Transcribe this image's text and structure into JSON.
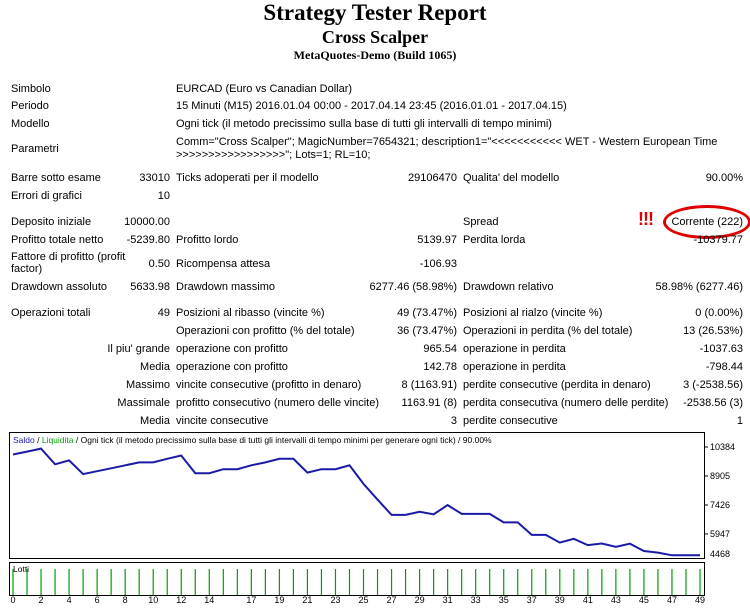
{
  "header": {
    "title": "Strategy Tester Report",
    "subtitle": "Cross Scalper",
    "build": "MetaQuotes-Demo (Build 1065)"
  },
  "info": {
    "simbolo_label": "Simbolo",
    "simbolo_value": "EURCAD (Euro vs Canadian Dollar)",
    "periodo_label": "Periodo",
    "periodo_value": "15 Minuti (M15) 2016.01.04 00:00 - 2017.04.14 23:45 (2016.01.01 - 2017.04.15)",
    "modello_label": "Modello",
    "modello_value": "Ogni tick (il metodo precissimo sulla base di tutti gli intervalli di tempo minimi)",
    "parametri_label": "Parametri",
    "parametri_value_1": "Comm=\"Cross Scalper\"; MagicNumber=7654321; description1=\"<<<<<<<<<<< WET - Western European Time",
    "parametri_value_2": ">>>>>>>>>>>>>>>>>\"; Lots=1; RL=10;"
  },
  "stats": {
    "barre_label": "Barre sotto esame",
    "barre_value": "33010",
    "ticks_label": "Ticks adoperati per il modello",
    "ticks_value": "29106470",
    "qualita_label": "Qualita' del modello",
    "qualita_value": "90.00%",
    "errori_label": "Errori di grafici",
    "errori_value": "10",
    "deposito_label": "Deposito iniziale",
    "deposito_value": "10000.00",
    "spread_label": "Spread",
    "spread_value": "Corrente (222)",
    "alert_mark": "!!!",
    "profitto_totale_label": "Profitto totale netto",
    "profitto_totale_value": "-5239.80",
    "profitto_lordo_label": "Profitto lordo",
    "profitto_lordo_value": "5139.97",
    "perdita_lorda_label": "Perdita lorda",
    "perdita_lorda_value": "-10379.77",
    "fattore_label_1": "Fattore di profitto (profit",
    "fattore_label_2": "factor)",
    "fattore_value": "0.50",
    "ricompensa_label": "Ricompensa attesa",
    "ricompensa_value": "-106.93",
    "dd_assoluto_label": "Drawdown assoluto",
    "dd_assoluto_value": "5633.98",
    "dd_massimo_label": "Drawdown massimo",
    "dd_massimo_value": "6277.46 (58.98%)",
    "dd_relativo_label": "Drawdown relativo",
    "dd_relativo_value": "58.98% (6277.46)",
    "op_totali_label": "Operazioni totali",
    "op_totali_value": "49",
    "pos_ribasso_label": "Posizioni al ribasso (vincite %)",
    "pos_ribasso_value": "49 (73.47%)",
    "pos_rialzo_label": "Posizioni al rialzo (vincite %)",
    "pos_rialzo_value": "0 (0.00%)",
    "op_profitto_label": "Operazioni con profitto (% del totale)",
    "op_profitto_value": "36 (73.47%)",
    "op_perdita_label": "Operazioni in perdita (% del totale)",
    "op_perdita_value": "13 (26.53%)",
    "grande_label": "Il piu' grande",
    "grande_p_label": "operazione con profitto",
    "grande_p_value": "965.54",
    "grande_l_label": "operazione in perdita",
    "grande_l_value": "-1037.63",
    "media1_label": "Media",
    "media1_p_label": "operazione con profitto",
    "media1_p_value": "142.78",
    "media1_l_label": "operazione in perdita",
    "media1_l_value": "-798.44",
    "massimo_label": "Massimo",
    "massimo_p_label": "vincite consecutive (profitto in denaro)",
    "massimo_p_value": "8 (1163.91)",
    "massimo_l_label": "perdite consecutive (perdita in denaro)",
    "massimo_l_value": "3 (-2538.56)",
    "massimale_label": "Massimale",
    "massimale_p_label": "profitto consecutivo (numero delle vincite)",
    "massimale_p_value": "1163.91 (8)",
    "massimale_l_label": "perdita consecutiva (numero delle perdite)",
    "massimale_l_value": "-2538.56 (3)",
    "media2_label": "Media",
    "media2_p_label": "vincite consecutive",
    "media2_p_value": "3",
    "media2_l_label": "perdite consecutive",
    "media2_l_value": "1"
  },
  "chart_legend": {
    "saldo": "Saldo",
    "sep": " / ",
    "liquidita": "Liquidita",
    "rest": " / Ogni tick (il metodo precissimo sulla base di tutti gli intervalli di tempo minimi per generare ogni tick) / 90.00%"
  },
  "lots_label": "Lotti",
  "colors": {
    "balance": "#1a1aa6",
    "equity": "#00a000",
    "alert": "#e00000"
  },
  "chart_data": {
    "type": "line",
    "x": [
      0,
      1,
      2,
      3,
      4,
      5,
      6,
      7,
      8,
      9,
      10,
      11,
      12,
      13,
      14,
      15,
      16,
      17,
      18,
      19,
      20,
      21,
      22,
      23,
      24,
      25,
      26,
      27,
      28,
      29,
      30,
      31,
      32,
      33,
      34,
      35,
      36,
      37,
      38,
      39,
      40,
      41,
      42,
      43,
      44,
      45,
      46,
      47,
      48,
      49
    ],
    "series": [
      {
        "name": "Saldo",
        "values": [
          10000,
          10150,
          10300,
          9500,
          9700,
          9000,
          9150,
          9300,
          9450,
          9600,
          9600,
          9780,
          9950,
          9050,
          9050,
          9250,
          9250,
          9450,
          9600,
          9780,
          9780,
          9080,
          9250,
          9250,
          9450,
          8500,
          7700,
          6920,
          6920,
          7080,
          6950,
          7420,
          6970,
          6970,
          6970,
          6540,
          6540,
          5900,
          5900,
          5510,
          5700,
          5380,
          5460,
          5290,
          5450,
          5080,
          5000,
          4860,
          4860,
          4860
        ]
      }
    ],
    "yticks": [
      10384,
      8905,
      7426,
      5947,
      4468
    ],
    "ylim": [
      4468,
      10384
    ],
    "xticks": [
      0,
      2,
      4,
      6,
      8,
      10,
      12,
      14,
      17,
      19,
      21,
      23,
      25,
      27,
      29,
      31,
      33,
      35,
      37,
      39,
      41,
      43,
      45,
      47,
      49
    ],
    "lots": [
      1,
      1,
      1,
      1,
      1,
      1,
      1,
      1,
      1,
      1,
      1,
      1,
      1,
      1,
      1,
      1,
      1,
      1,
      1,
      1,
      1,
      1,
      1,
      1,
      1,
      1,
      1,
      1,
      1,
      1,
      1,
      1,
      1,
      1,
      1,
      1,
      1,
      1,
      1,
      1,
      1,
      1,
      1,
      1,
      1,
      1,
      1,
      1,
      1,
      1
    ],
    "grid": false
  }
}
